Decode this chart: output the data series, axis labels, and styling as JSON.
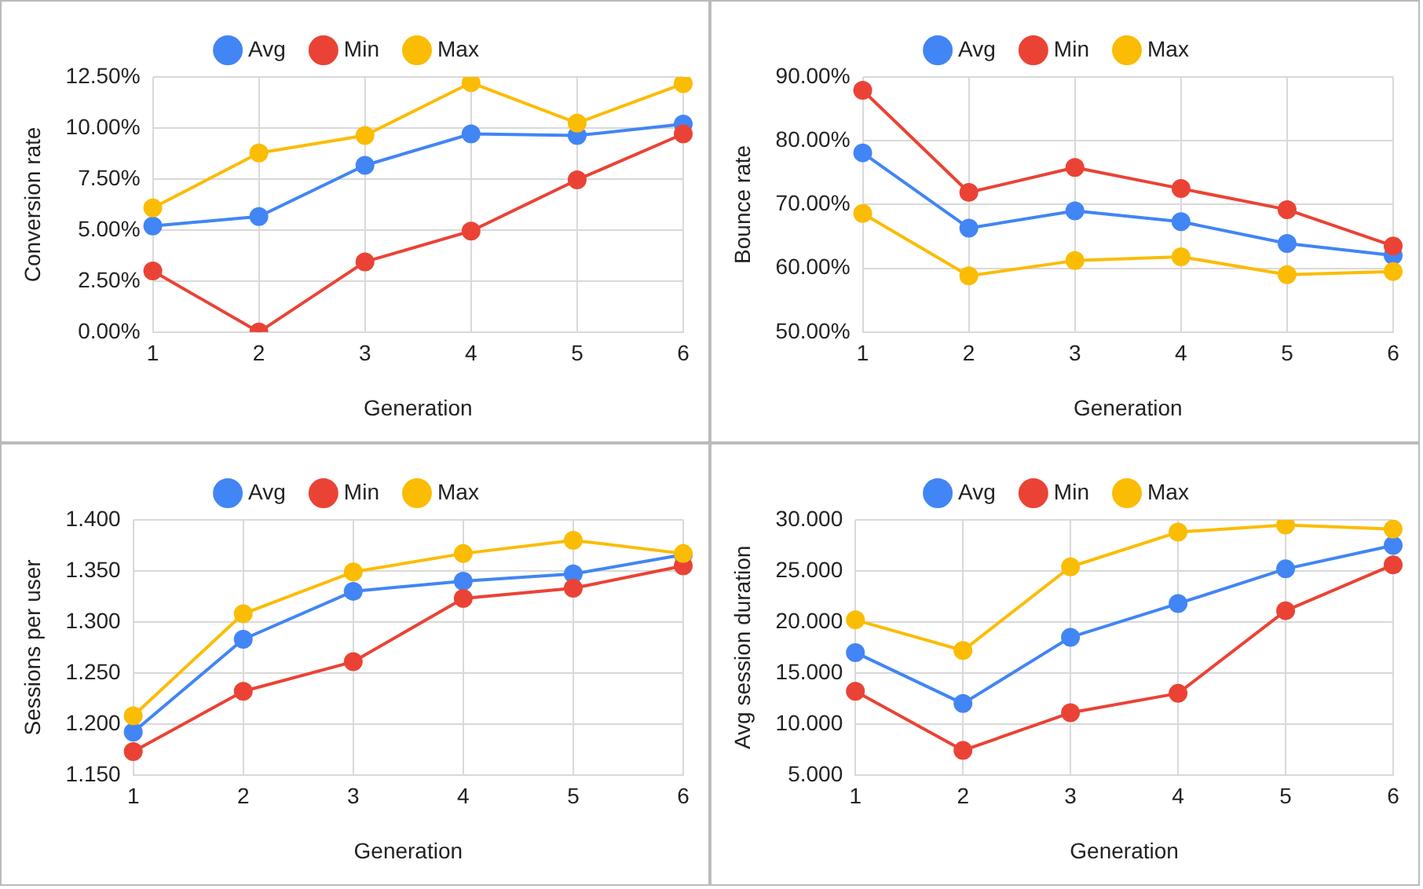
{
  "chart_data": [
    {
      "type": "line",
      "xlabel": "Generation",
      "ylabel": "Conversion rate",
      "categories": [
        "1",
        "2",
        "3",
        "4",
        "5",
        "6"
      ],
      "series": [
        {
          "name": "Avg",
          "color": "#4285f4",
          "values": [
            5.2,
            5.66,
            8.17,
            9.71,
            9.63,
            10.19
          ]
        },
        {
          "name": "Min",
          "color": "#ea4335",
          "values": [
            2.99,
            0,
            3.44,
            4.95,
            7.46,
            9.71
          ]
        },
        {
          "name": "Max",
          "color": "#fbbc04",
          "values": [
            6.08,
            8.78,
            9.63,
            12.22,
            10.24,
            12.17
          ]
        }
      ],
      "ylim": [
        0,
        12.5
      ],
      "yticks": [
        {
          "value": 0,
          "label": "0.00%"
        },
        {
          "value": 2.5,
          "label": "2.50%"
        },
        {
          "value": 5,
          "label": "5.00%"
        },
        {
          "value": 7.5,
          "label": "7.50%"
        },
        {
          "value": 10,
          "label": "10.00%"
        },
        {
          "value": 12.5,
          "label": "12.50%"
        }
      ],
      "grid": true,
      "legend": "top",
      "marker": "circle",
      "line_style": "solid"
    },
    {
      "type": "line",
      "xlabel": "Generation",
      "ylabel": "Bounce rate",
      "categories": [
        "1",
        "2",
        "3",
        "4",
        "5",
        "6"
      ],
      "series": [
        {
          "name": "Avg",
          "color": "#4285f4",
          "values": [
            78.1,
            66.3,
            69.0,
            67.3,
            63.9,
            62.0
          ]
        },
        {
          "name": "Min",
          "color": "#ea4335",
          "values": [
            87.9,
            71.9,
            75.8,
            72.5,
            69.2,
            63.5
          ]
        },
        {
          "name": "Max",
          "color": "#fbbc04",
          "values": [
            68.6,
            58.8,
            61.2,
            61.8,
            59.0,
            59.5
          ]
        }
      ],
      "ylim": [
        50,
        90
      ],
      "yticks": [
        {
          "value": 50,
          "label": "50.00%"
        },
        {
          "value": 60,
          "label": "60.00%"
        },
        {
          "value": 70,
          "label": "70.00%"
        },
        {
          "value": 80,
          "label": "80.00%"
        },
        {
          "value": 90,
          "label": "90.00%"
        }
      ],
      "grid": true,
      "legend": "top",
      "marker": "circle",
      "line_style": "solid"
    },
    {
      "type": "line",
      "xlabel": "Generation",
      "ylabel": "Sessions per user",
      "categories": [
        "1",
        "2",
        "3",
        "4",
        "5",
        "6"
      ],
      "series": [
        {
          "name": "Avg",
          "color": "#4285f4",
          "values": [
            1.192,
            1.283,
            1.33,
            1.34,
            1.347,
            1.366
          ]
        },
        {
          "name": "Min",
          "color": "#ea4335",
          "values": [
            1.173,
            1.232,
            1.261,
            1.323,
            1.333,
            1.355
          ]
        },
        {
          "name": "Max",
          "color": "#fbbc04",
          "values": [
            1.208,
            1.308,
            1.349,
            1.367,
            1.38,
            1.367
          ]
        }
      ],
      "ylim": [
        1.15,
        1.4
      ],
      "yticks": [
        {
          "value": 1.15,
          "label": "1.150"
        },
        {
          "value": 1.2,
          "label": "1.200"
        },
        {
          "value": 1.25,
          "label": "1.250"
        },
        {
          "value": 1.3,
          "label": "1.300"
        },
        {
          "value": 1.35,
          "label": "1.350"
        },
        {
          "value": 1.4,
          "label": "1.400"
        }
      ],
      "grid": true,
      "legend": "top",
      "marker": "circle",
      "line_style": "solid"
    },
    {
      "type": "line",
      "xlabel": "Generation",
      "ylabel": "Avg session duration",
      "categories": [
        "1",
        "2",
        "3",
        "4",
        "5",
        "6"
      ],
      "series": [
        {
          "name": "Avg",
          "color": "#4285f4",
          "values": [
            17.0,
            12.0,
            18.5,
            21.8,
            25.2,
            27.5
          ]
        },
        {
          "name": "Min",
          "color": "#ea4335",
          "values": [
            13.2,
            7.4,
            11.1,
            13.0,
            21.1,
            25.6
          ]
        },
        {
          "name": "Max",
          "color": "#fbbc04",
          "values": [
            20.2,
            17.2,
            25.4,
            28.8,
            29.5,
            29.1
          ]
        }
      ],
      "ylim": [
        5,
        30
      ],
      "yticks": [
        {
          "value": 5,
          "label": "5.000"
        },
        {
          "value": 10,
          "label": "10.000"
        },
        {
          "value": 15,
          "label": "15.000"
        },
        {
          "value": 20,
          "label": "20.000"
        },
        {
          "value": 25,
          "label": "25.000"
        },
        {
          "value": 30,
          "label": "30.000"
        }
      ],
      "grid": true,
      "legend": "top",
      "marker": "circle",
      "line_style": "solid"
    }
  ]
}
